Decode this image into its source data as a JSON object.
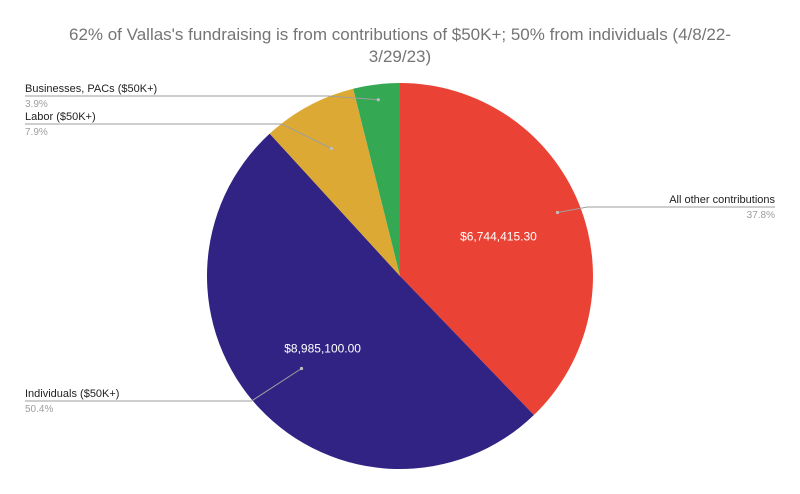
{
  "chart_data": {
    "type": "pie",
    "title": "62% of Vallas's fundraising is from contributions of $50K+; 50% from individuals (4/8/22-3/29/23)",
    "slices": [
      {
        "name": "All other contributions",
        "percent": 37.8,
        "percent_label": "37.8%",
        "value_label": "$6,744,415.30",
        "color": "#ea4335"
      },
      {
        "name": "Individuals ($50K+)",
        "percent": 50.4,
        "percent_label": "50.4%",
        "value": 8985100.0,
        "value_label": "$8,985,100.00",
        "color": "#312384"
      },
      {
        "name": "Labor ($50K+)",
        "percent": 7.9,
        "percent_label": "7.9%",
        "color": "#dcaa34"
      },
      {
        "name": "Businesses, PACs ($50K+)",
        "percent": 3.9,
        "percent_label": "3.9%",
        "color": "#34a853"
      }
    ],
    "legend": "none",
    "start_angle_deg": 0,
    "direction": "clockwise"
  }
}
